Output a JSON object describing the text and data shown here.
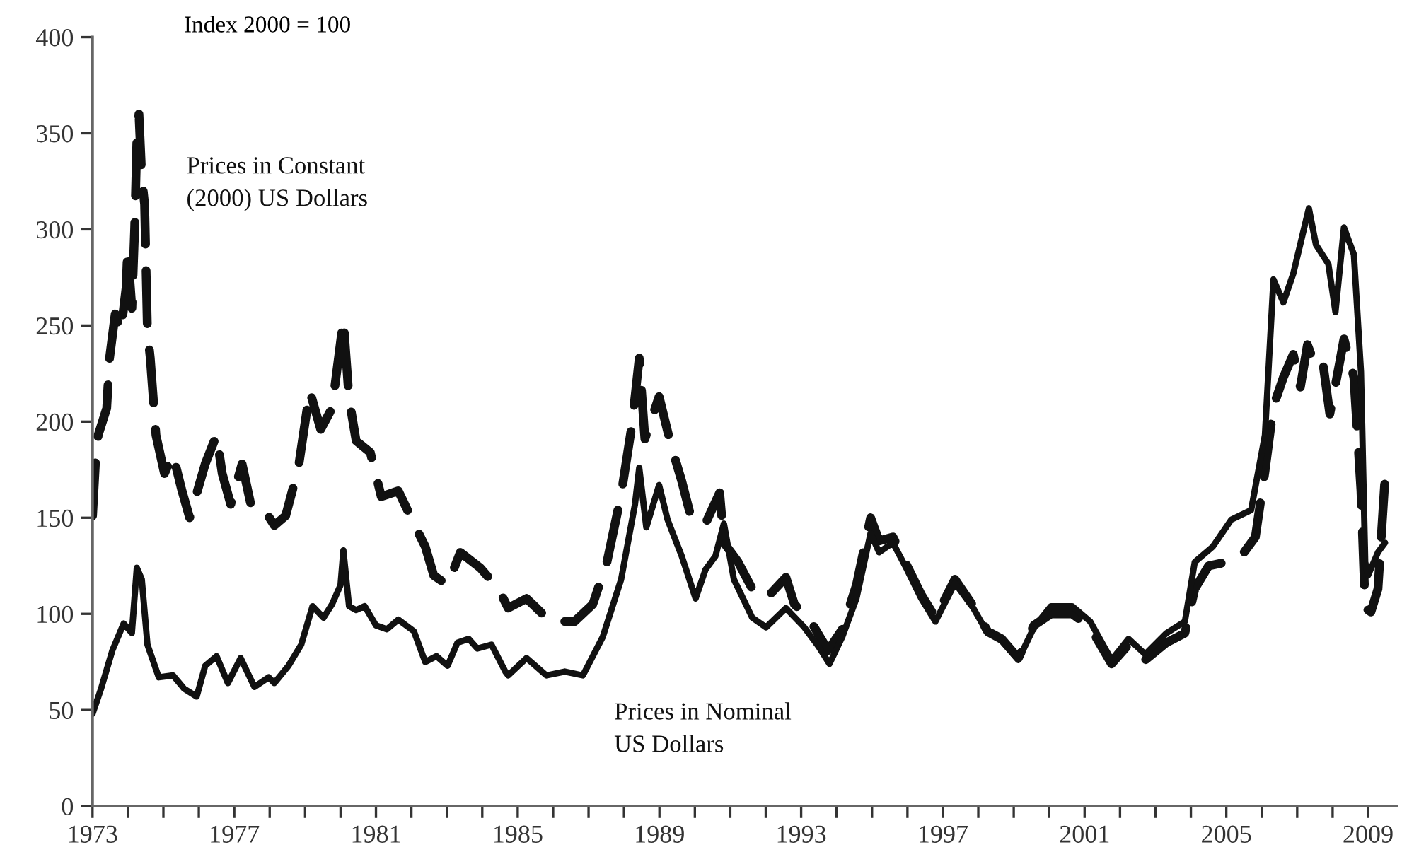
{
  "chart_data": {
    "type": "line",
    "annotations": [
      "Index 2000 = 100"
    ],
    "xlim": [
      1973,
      2009.8
    ],
    "ylim": [
      0,
      400
    ],
    "xticks": [
      1973,
      {
        "value": 1974,
        "label": null
      },
      {
        "value": 1975,
        "label": null
      },
      {
        "value": 1976,
        "label": null
      },
      1977,
      {
        "value": 1978,
        "label": null
      },
      {
        "value": 1979,
        "label": null
      },
      {
        "value": 1980,
        "label": null
      },
      1981,
      {
        "value": 1982,
        "label": null
      },
      {
        "value": 1983,
        "label": null
      },
      {
        "value": 1984,
        "label": null
      },
      1985,
      {
        "value": 1986,
        "label": null
      },
      {
        "value": 1987,
        "label": null
      },
      {
        "value": 1988,
        "label": null
      },
      1989,
      {
        "value": 1990,
        "label": null
      },
      {
        "value": 1991,
        "label": null
      },
      {
        "value": 1992,
        "label": null
      },
      1993,
      {
        "value": 1994,
        "label": null
      },
      {
        "value": 1995,
        "label": null
      },
      {
        "value": 1996,
        "label": null
      },
      1997,
      {
        "value": 1998,
        "label": null
      },
      {
        "value": 1999,
        "label": null
      },
      {
        "value": 2000,
        "label": null
      },
      2001,
      {
        "value": 2002,
        "label": null
      },
      {
        "value": 2003,
        "label": null
      },
      {
        "value": 2004,
        "label": null
      },
      2005,
      {
        "value": 2006,
        "label": null
      },
      {
        "value": 2007,
        "label": null
      },
      {
        "value": 2008,
        "label": null
      },
      2009
    ],
    "yticks": [
      0,
      50,
      100,
      150,
      200,
      250,
      300,
      350,
      400
    ],
    "grid": false,
    "legend": false,
    "marker": "none",
    "series": [
      {
        "name": "Prices in Constant (2000) US Dollars",
        "color": "#111111",
        "line_style": "dashed",
        "x": [
          1973.0,
          1973.08,
          1973.16,
          1973.4,
          1973.48,
          1973.64,
          1973.8,
          1973.95,
          1973.99,
          1974.11,
          1974.19,
          1974.25,
          1974.31,
          1974.39,
          1974.47,
          1974.55,
          1974.63,
          1974.79,
          1975.03,
          1975.27,
          1975.51,
          1975.74,
          1976.18,
          1976.5,
          1976.66,
          1976.9,
          1977.22,
          1977.49,
          1977.89,
          1978.13,
          1978.45,
          1978.81,
          1979.13,
          1979.44,
          1979.76,
          1980.08,
          1980.24,
          1980.44,
          1980.84,
          1981.15,
          1981.63,
          1982.07,
          1982.39,
          1982.63,
          1983.02,
          1983.38,
          1983.94,
          1984.46,
          1984.73,
          1985.25,
          1985.93,
          1986.6,
          1987.12,
          1987.52,
          1987.92,
          1988.23,
          1988.43,
          1988.59,
          1988.99,
          1989.31,
          1989.63,
          1989.91,
          1990.3,
          1990.7,
          1990.82,
          1991.22,
          1991.62,
          1992.01,
          1992.57,
          1992.81,
          1993.21,
          1993.76,
          1994.16,
          1994.56,
          1994.96,
          1995.2,
          1995.59,
          1995.99,
          1996.39,
          1996.79,
          1997.34,
          1997.86,
          1998.26,
          1998.66,
          1999.13,
          1999.57,
          2000.05,
          2000.65,
          2001.16,
          2001.76,
          2002.24,
          2002.71,
          2003.31,
          2003.83,
          2004.11,
          2004.5,
          2005.02,
          2005.42,
          2005.82,
          2006.09,
          2006.33,
          2006.61,
          2006.89,
          2007.09,
          2007.29,
          2007.53,
          2007.73,
          2007.92,
          2008.12,
          2008.32,
          2008.6,
          2008.8,
          2008.92,
          2009.08,
          2009.28,
          2009.48
        ],
        "values": [
          151,
          178,
          193,
          207,
          233,
          256,
          247,
          270,
          290,
          259,
          301,
          345,
          360,
          327,
          313,
          247,
          233,
          193,
          173,
          183,
          165,
          150,
          178,
          193,
          173,
          157,
          178,
          155,
          153,
          146,
          151,
          176,
          216,
          196,
          207,
          253,
          212,
          190,
          184,
          161,
          164,
          147,
          135,
          120,
          115,
          132,
          124,
          113,
          103,
          108,
          96,
          96,
          105,
          127,
          162,
          199,
          233,
          191,
          213,
          189,
          169,
          149,
          147,
          163,
          137,
          127,
          113,
          108,
          119,
          105,
          98,
          81,
          92,
          115,
          150,
          138,
          140,
          125,
          110,
          98,
          118,
          104,
          91,
          87,
          77,
          94,
          100,
          100,
          93,
          74,
          84,
          76,
          85,
          90,
          113,
          125,
          127,
          130,
          140,
          174,
          208,
          223,
          235,
          218,
          240,
          228,
          230,
          204,
          223,
          243,
          223,
          164,
          103,
          101,
          113,
          171
        ]
      },
      {
        "name": "Prices in Nominal US Dollars",
        "color": "#111111",
        "line_style": "solid",
        "x": [
          1973.0,
          1973.24,
          1973.56,
          1973.88,
          1974.11,
          1974.25,
          1974.39,
          1974.55,
          1974.87,
          1975.27,
          1975.59,
          1975.94,
          1976.18,
          1976.5,
          1976.82,
          1977.18,
          1977.57,
          1977.97,
          1978.13,
          1978.53,
          1978.89,
          1979.21,
          1979.52,
          1979.76,
          1980.0,
          1980.08,
          1980.24,
          1980.44,
          1980.68,
          1981.0,
          1981.31,
          1981.63,
          1982.07,
          1982.39,
          1982.71,
          1983.02,
          1983.3,
          1983.62,
          1983.86,
          1984.26,
          1984.65,
          1984.73,
          1985.25,
          1985.81,
          1986.33,
          1986.84,
          1987.4,
          1987.92,
          1988.31,
          1988.43,
          1988.63,
          1988.99,
          1989.23,
          1989.63,
          1990.02,
          1990.3,
          1990.58,
          1990.82,
          1991.1,
          1991.62,
          1992.01,
          1992.57,
          1993.09,
          1993.49,
          1993.8,
          1994.16,
          1994.56,
          1994.96,
          1995.2,
          1995.59,
          1995.99,
          1996.39,
          1996.79,
          1997.34,
          1997.86,
          1998.26,
          1998.66,
          1999.13,
          1999.57,
          2000.05,
          2000.65,
          2001.16,
          2001.76,
          2002.24,
          2002.71,
          2003.31,
          2003.83,
          2004.11,
          2004.62,
          2005.14,
          2005.7,
          2006.09,
          2006.33,
          2006.61,
          2006.89,
          2007.33,
          2007.53,
          2007.88,
          2008.08,
          2008.32,
          2008.6,
          2008.8,
          2008.92,
          2009.0,
          2009.28,
          2009.48
        ],
        "values": [
          48,
          61,
          81,
          95,
          90,
          124,
          118,
          84,
          67,
          68,
          61,
          57,
          73,
          78,
          64,
          77,
          62,
          67,
          64,
          73,
          84,
          104,
          98,
          105,
          115,
          133,
          104,
          102,
          104,
          94,
          92,
          97,
          91,
          75,
          78,
          73,
          85,
          87,
          82,
          84,
          70,
          68,
          77,
          68,
          70,
          68,
          88,
          118,
          157,
          176,
          145,
          167,
          149,
          130,
          108,
          123,
          130,
          147,
          118,
          98,
          93,
          103,
          93,
          83,
          74,
          88,
          108,
          142,
          132,
          137,
          123,
          108,
          96,
          116,
          103,
          90,
          86,
          76,
          93,
          104,
          104,
          96,
          76,
          87,
          79,
          90,
          96,
          127,
          135,
          149,
          154,
          193,
          274,
          262,
          277,
          311,
          292,
          282,
          257,
          301,
          287,
          226,
          127,
          120,
          132,
          137
        ]
      }
    ]
  }
}
